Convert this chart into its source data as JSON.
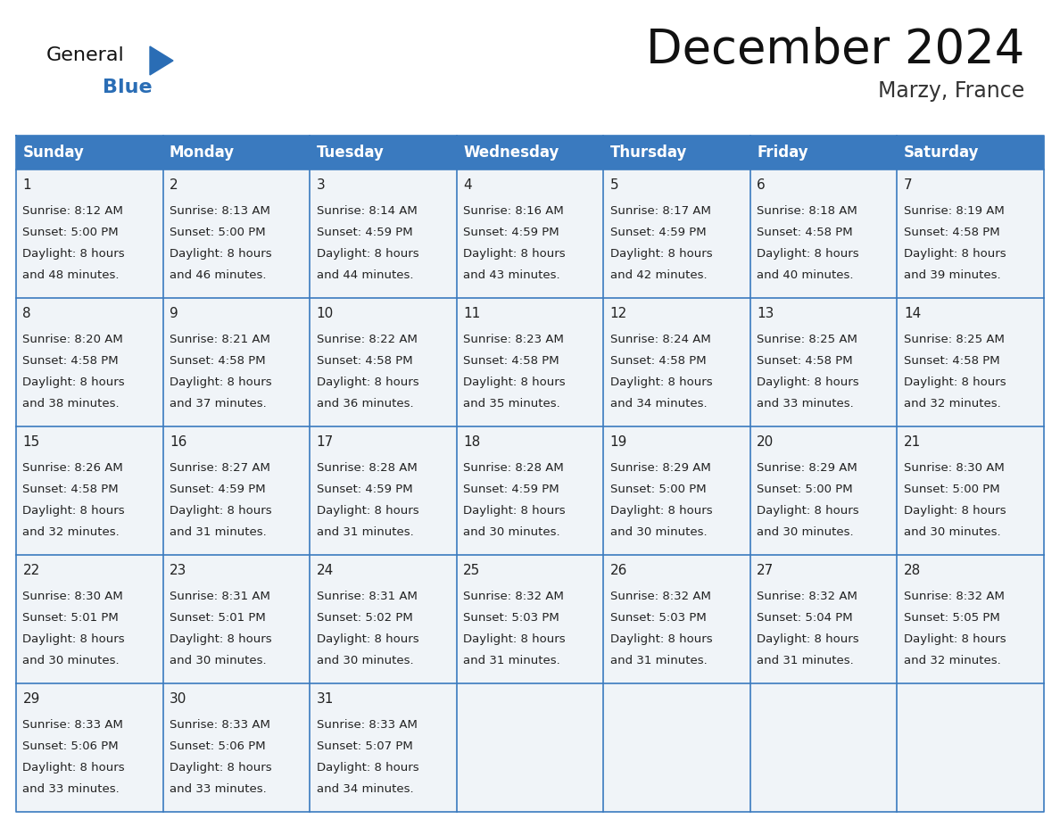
{
  "title": "December 2024",
  "subtitle": "Marzy, France",
  "header_bg_color": "#3a7abf",
  "header_text_color": "#ffffff",
  "header_font_size": 12,
  "day_names": [
    "Sunday",
    "Monday",
    "Tuesday",
    "Wednesday",
    "Thursday",
    "Friday",
    "Saturday"
  ],
  "title_font_size": 38,
  "subtitle_font_size": 17,
  "cell_text_color": "#222222",
  "day_num_font_size": 11,
  "cell_font_size": 9.5,
  "grid_color": "#3a7abf",
  "bg_color": "#ffffff",
  "cell_bg_color": "#f0f4f8",
  "logo_general_color": "#111111",
  "logo_blue_color": "#2a6db5",
  "weeks": [
    [
      {
        "day": 1,
        "sunrise": "8:12 AM",
        "sunset": "5:00 PM",
        "daylight": "8 hours and 48 minutes."
      },
      {
        "day": 2,
        "sunrise": "8:13 AM",
        "sunset": "5:00 PM",
        "daylight": "8 hours and 46 minutes."
      },
      {
        "day": 3,
        "sunrise": "8:14 AM",
        "sunset": "4:59 PM",
        "daylight": "8 hours and 44 minutes."
      },
      {
        "day": 4,
        "sunrise": "8:16 AM",
        "sunset": "4:59 PM",
        "daylight": "8 hours and 43 minutes."
      },
      {
        "day": 5,
        "sunrise": "8:17 AM",
        "sunset": "4:59 PM",
        "daylight": "8 hours and 42 minutes."
      },
      {
        "day": 6,
        "sunrise": "8:18 AM",
        "sunset": "4:58 PM",
        "daylight": "8 hours and 40 minutes."
      },
      {
        "day": 7,
        "sunrise": "8:19 AM",
        "sunset": "4:58 PM",
        "daylight": "8 hours and 39 minutes."
      }
    ],
    [
      {
        "day": 8,
        "sunrise": "8:20 AM",
        "sunset": "4:58 PM",
        "daylight": "8 hours and 38 minutes."
      },
      {
        "day": 9,
        "sunrise": "8:21 AM",
        "sunset": "4:58 PM",
        "daylight": "8 hours and 37 minutes."
      },
      {
        "day": 10,
        "sunrise": "8:22 AM",
        "sunset": "4:58 PM",
        "daylight": "8 hours and 36 minutes."
      },
      {
        "day": 11,
        "sunrise": "8:23 AM",
        "sunset": "4:58 PM",
        "daylight": "8 hours and 35 minutes."
      },
      {
        "day": 12,
        "sunrise": "8:24 AM",
        "sunset": "4:58 PM",
        "daylight": "8 hours and 34 minutes."
      },
      {
        "day": 13,
        "sunrise": "8:25 AM",
        "sunset": "4:58 PM",
        "daylight": "8 hours and 33 minutes."
      },
      {
        "day": 14,
        "sunrise": "8:25 AM",
        "sunset": "4:58 PM",
        "daylight": "8 hours and 32 minutes."
      }
    ],
    [
      {
        "day": 15,
        "sunrise": "8:26 AM",
        "sunset": "4:58 PM",
        "daylight": "8 hours and 32 minutes."
      },
      {
        "day": 16,
        "sunrise": "8:27 AM",
        "sunset": "4:59 PM",
        "daylight": "8 hours and 31 minutes."
      },
      {
        "day": 17,
        "sunrise": "8:28 AM",
        "sunset": "4:59 PM",
        "daylight": "8 hours and 31 minutes."
      },
      {
        "day": 18,
        "sunrise": "8:28 AM",
        "sunset": "4:59 PM",
        "daylight": "8 hours and 30 minutes."
      },
      {
        "day": 19,
        "sunrise": "8:29 AM",
        "sunset": "5:00 PM",
        "daylight": "8 hours and 30 minutes."
      },
      {
        "day": 20,
        "sunrise": "8:29 AM",
        "sunset": "5:00 PM",
        "daylight": "8 hours and 30 minutes."
      },
      {
        "day": 21,
        "sunrise": "8:30 AM",
        "sunset": "5:00 PM",
        "daylight": "8 hours and 30 minutes."
      }
    ],
    [
      {
        "day": 22,
        "sunrise": "8:30 AM",
        "sunset": "5:01 PM",
        "daylight": "8 hours and 30 minutes."
      },
      {
        "day": 23,
        "sunrise": "8:31 AM",
        "sunset": "5:01 PM",
        "daylight": "8 hours and 30 minutes."
      },
      {
        "day": 24,
        "sunrise": "8:31 AM",
        "sunset": "5:02 PM",
        "daylight": "8 hours and 30 minutes."
      },
      {
        "day": 25,
        "sunrise": "8:32 AM",
        "sunset": "5:03 PM",
        "daylight": "8 hours and 31 minutes."
      },
      {
        "day": 26,
        "sunrise": "8:32 AM",
        "sunset": "5:03 PM",
        "daylight": "8 hours and 31 minutes."
      },
      {
        "day": 27,
        "sunrise": "8:32 AM",
        "sunset": "5:04 PM",
        "daylight": "8 hours and 31 minutes."
      },
      {
        "day": 28,
        "sunrise": "8:32 AM",
        "sunset": "5:05 PM",
        "daylight": "8 hours and 32 minutes."
      }
    ],
    [
      {
        "day": 29,
        "sunrise": "8:33 AM",
        "sunset": "5:06 PM",
        "daylight": "8 hours and 33 minutes."
      },
      {
        "day": 30,
        "sunrise": "8:33 AM",
        "sunset": "5:06 PM",
        "daylight": "8 hours and 33 minutes."
      },
      {
        "day": 31,
        "sunrise": "8:33 AM",
        "sunset": "5:07 PM",
        "daylight": "8 hours and 34 minutes."
      },
      null,
      null,
      null,
      null
    ]
  ]
}
